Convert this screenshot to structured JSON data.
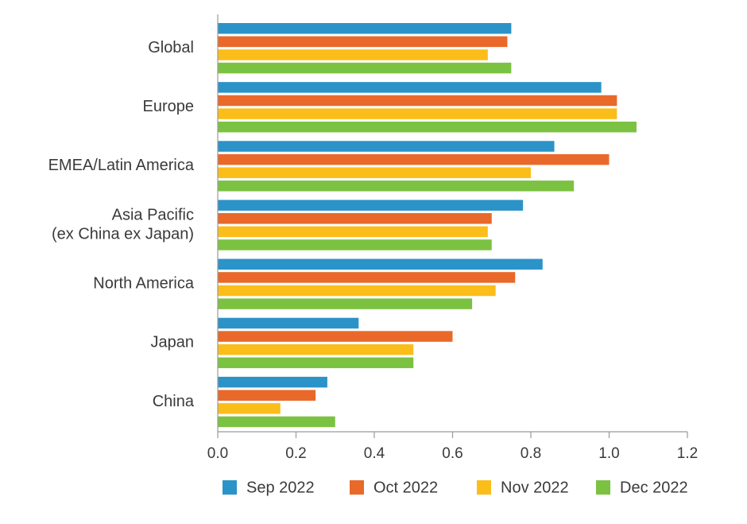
{
  "chart_data": {
    "type": "bar",
    "orientation": "horizontal",
    "title": "",
    "xlabel": "",
    "ylabel": "",
    "categories": [
      [
        "Global"
      ],
      [
        "Europe"
      ],
      [
        "EMEA/Latin America"
      ],
      [
        "Asia Pacific",
        "(ex China ex Japan)"
      ],
      [
        "North America"
      ],
      [
        "Japan"
      ],
      [
        "China"
      ]
    ],
    "series": [
      {
        "name": "Sep 2022",
        "color": "#2b93c8",
        "values": [
          0.75,
          0.98,
          0.86,
          0.78,
          0.83,
          0.36,
          0.28
        ]
      },
      {
        "name": "Oct 2022",
        "color": "#e8692a",
        "values": [
          0.74,
          1.02,
          1.0,
          0.7,
          0.76,
          0.6,
          0.25
        ]
      },
      {
        "name": "Nov 2022",
        "color": "#fbbd19",
        "values": [
          0.69,
          1.02,
          0.8,
          0.69,
          0.71,
          0.5,
          0.16
        ]
      },
      {
        "name": "Dec 2022",
        "color": "#7cc242",
        "values": [
          0.75,
          1.07,
          0.91,
          0.7,
          0.65,
          0.5,
          0.3
        ]
      }
    ],
    "xlim": [
      0.0,
      1.2
    ],
    "xticks": [
      "0.0",
      "0.2",
      "0.4",
      "0.6",
      "0.8",
      "1.0",
      "1.2"
    ],
    "grid": false,
    "legend_position": "bottom"
  }
}
